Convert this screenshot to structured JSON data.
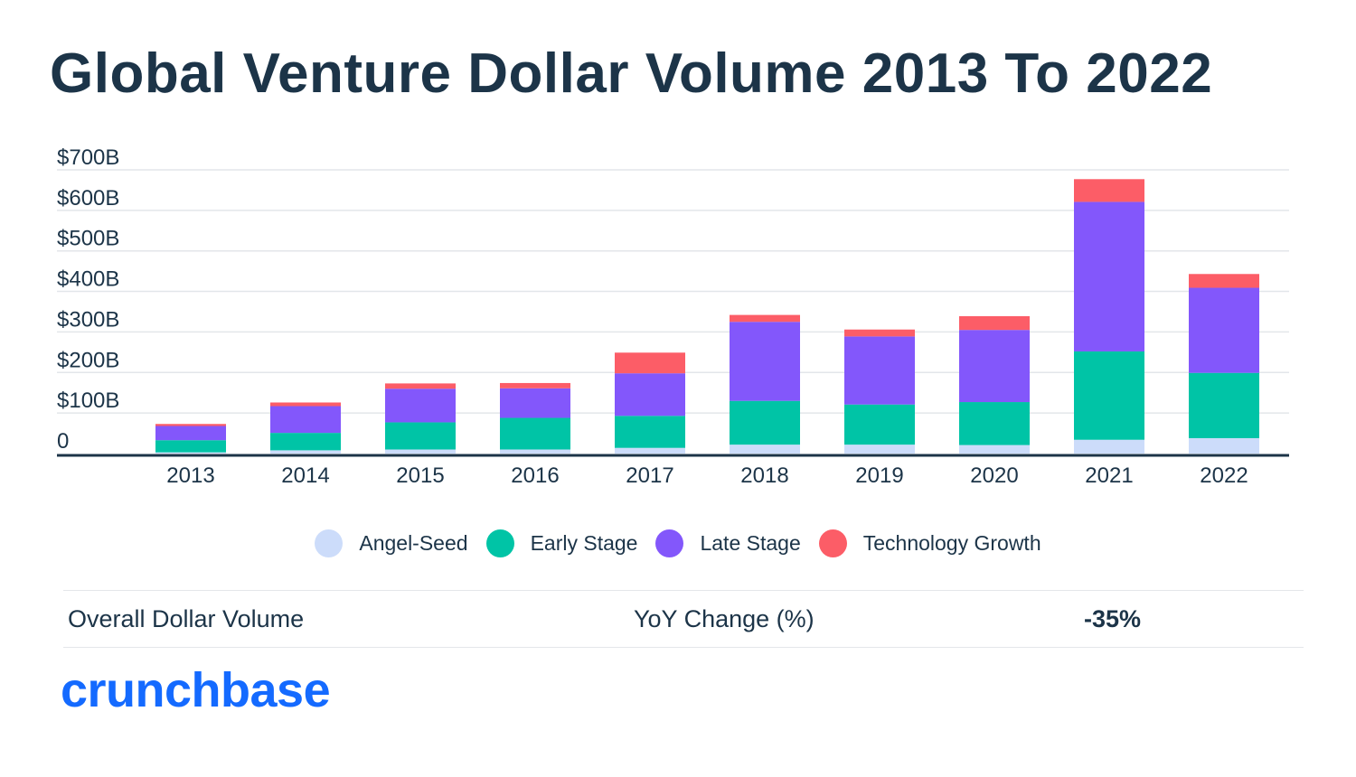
{
  "colors": {
    "Angel-Seed": "#ccdcfa",
    "Early Stage": "#00c4a6",
    "Late Stage": "#8357fb",
    "Technology Growth": "#fc5d67",
    "text": "#1c3448",
    "brand": "#146aff"
  },
  "chart_data": {
    "type": "bar",
    "stacked": true,
    "title": "Global Venture Dollar Volume 2013 To 2022",
    "categories": [
      "2013",
      "2014",
      "2015",
      "2016",
      "2017",
      "2018",
      "2019",
      "2020",
      "2021",
      "2022"
    ],
    "series": [
      {
        "name": "Angel-Seed",
        "values": [
          3,
          8,
          10,
          10,
          14,
          22,
          22,
          21,
          34,
          38
        ]
      },
      {
        "name": "Early Stage",
        "values": [
          30,
          43,
          67,
          78,
          79,
          108,
          99,
          106,
          218,
          161
        ]
      },
      {
        "name": "Late Stage",
        "values": [
          35,
          66,
          83,
          73,
          105,
          195,
          168,
          178,
          369,
          210
        ]
      },
      {
        "name": "Technology Growth",
        "values": [
          5,
          9,
          13,
          13,
          51,
          17,
          17,
          34,
          56,
          34
        ]
      }
    ],
    "yticks": [
      "0",
      "$100B",
      "$200B",
      "$300B",
      "$400B",
      "$500B",
      "$600B",
      "$700B"
    ],
    "ytick_values": [
      0,
      100,
      200,
      300,
      400,
      500,
      600,
      700
    ],
    "ylim": [
      0,
      700
    ],
    "xlabel": "",
    "ylabel": "",
    "grid": true,
    "legend_position": "bottom"
  },
  "summary": {
    "label": "Overall Dollar Volume",
    "metric": "YoY Change (%)",
    "value": "-35%"
  },
  "logo": "crunchbase"
}
